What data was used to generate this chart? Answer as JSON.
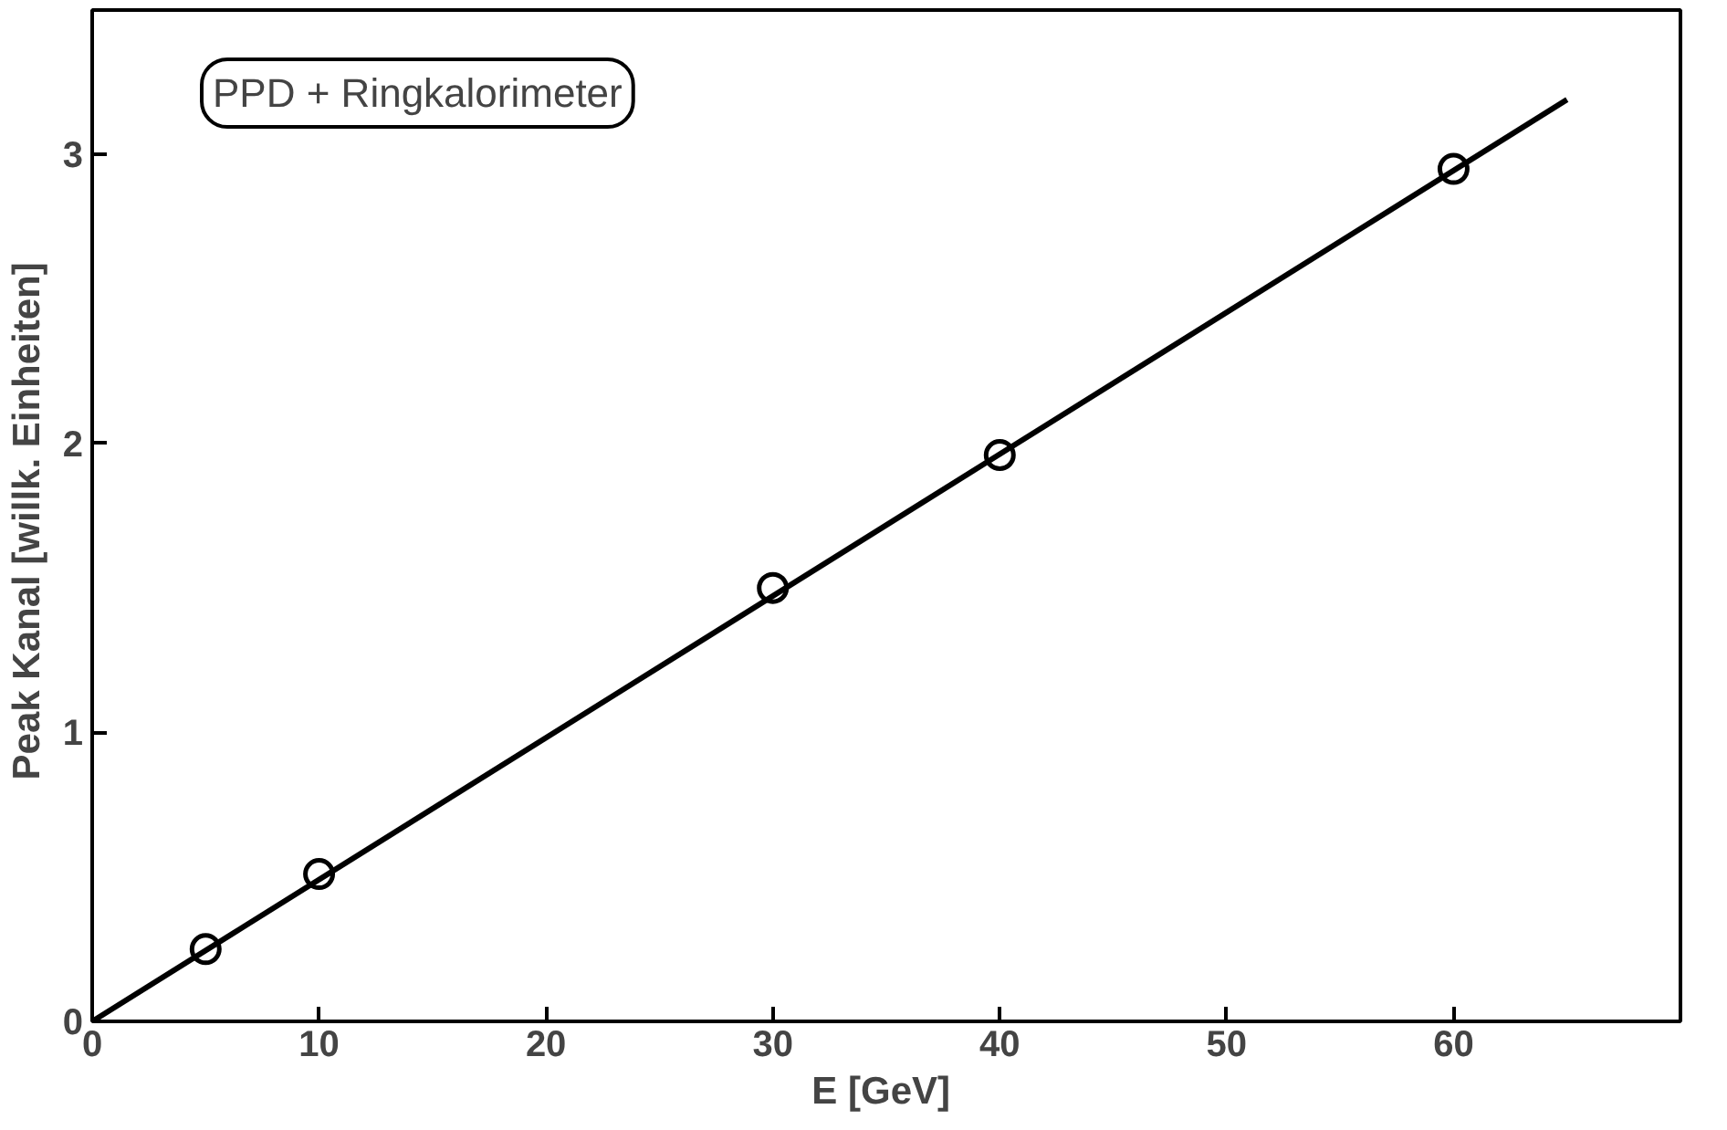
{
  "chart_data": {
    "type": "scatter",
    "xlabel": "E  [GeV]",
    "ylabel": "Peak Kanal  [willk. Einheiten]",
    "annotations": [
      "PPD + Ringkalorimeter"
    ],
    "series": [
      {
        "color": "#000000",
        "marker": "circle",
        "x": [
          5,
          10,
          30,
          40,
          60
        ],
        "values": [
          0.25,
          0.51,
          1.5,
          1.96,
          2.95
        ]
      },
      {
        "type": "line",
        "color": "#000000",
        "x": [
          0,
          65
        ],
        "values": [
          0,
          3.19
        ]
      }
    ],
    "xlim": [
      0,
      70
    ],
    "ylim": [
      0,
      3.5
    ],
    "xticks": [
      0,
      10,
      20,
      30,
      40,
      50,
      60
    ],
    "yticks": [
      0,
      1,
      2,
      3
    ],
    "grid": false
  }
}
